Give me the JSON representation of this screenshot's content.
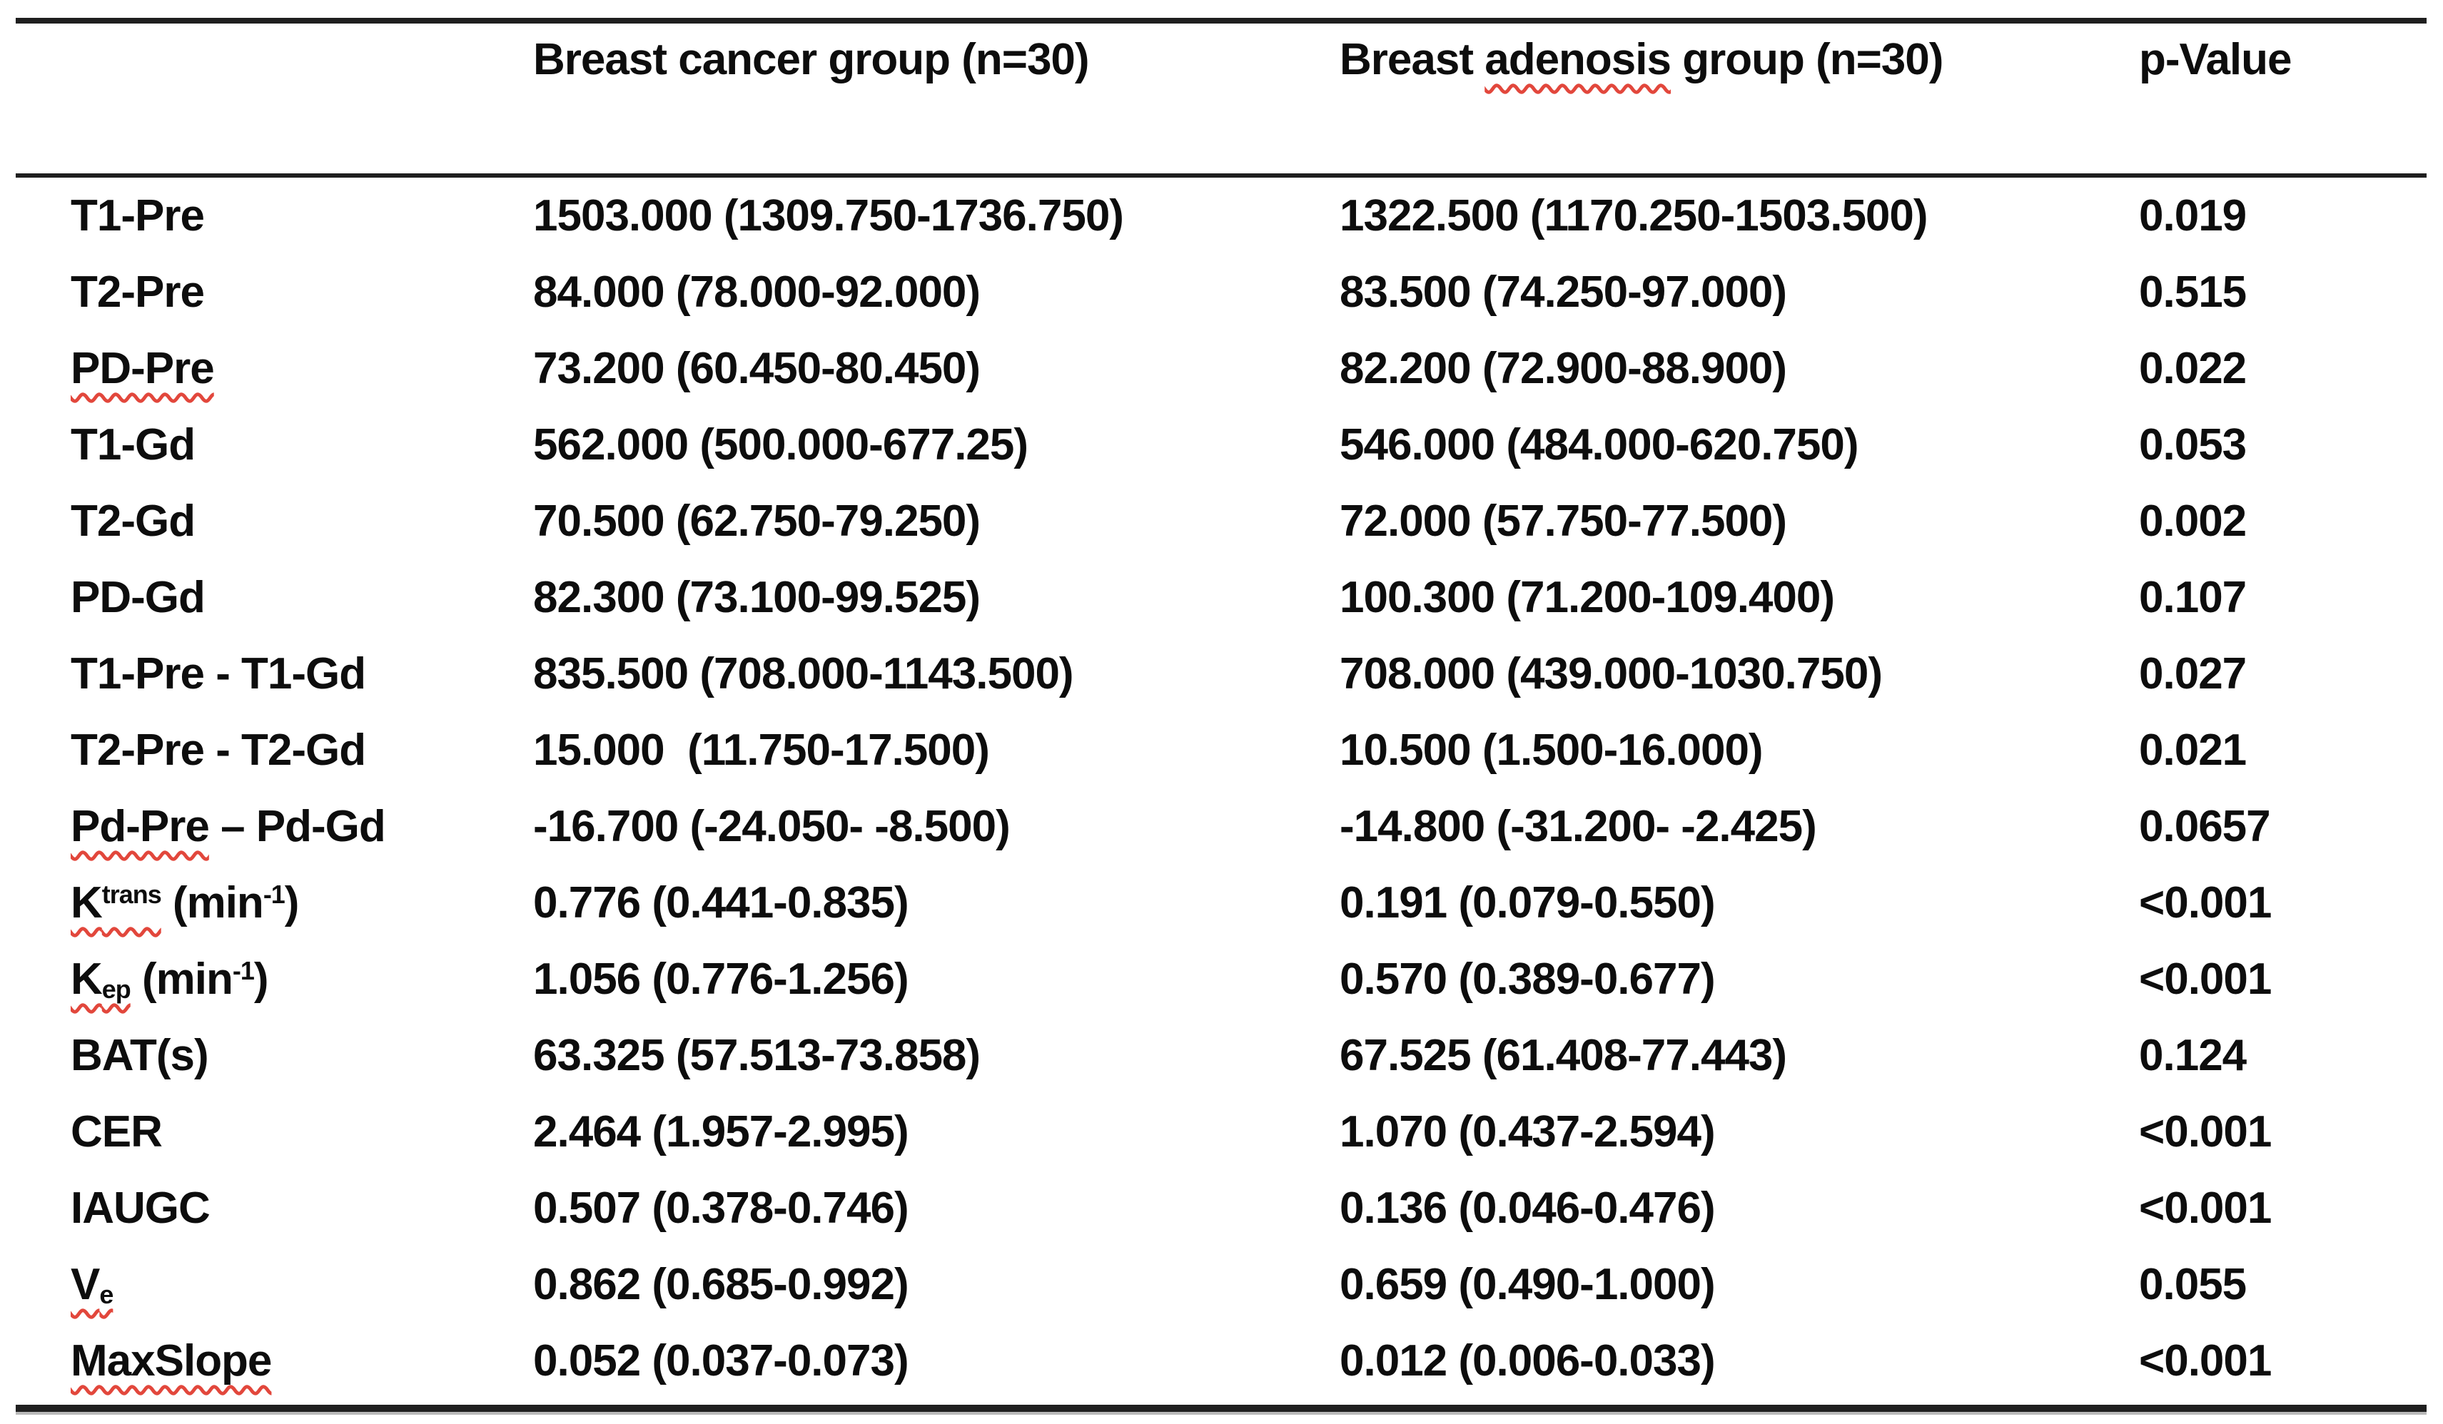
{
  "page": {
    "colors": {
      "background": "#ffffff",
      "text": "#0d0d0d",
      "table_rules": "#1f1f1f",
      "spellcheck_squiggle": "#e2473c"
    }
  },
  "table": {
    "header": {
      "parameter_column_label": "",
      "cancer_group_segments": [
        {
          "t": "Breast cancer group (n=30)"
        }
      ],
      "adenosis_group_segments": [
        {
          "t": "Breast "
        },
        {
          "t": "adenosis",
          "wavy": true
        },
        {
          "t": " group (n=30)"
        }
      ],
      "p_value": "p-Value"
    },
    "rows": [
      {
        "label_segments": [
          {
            "t": "T1-Pre"
          }
        ],
        "group1": "1503.000 (1309.750-1736.750)",
        "group2": "1322.500 (1170.250-1503.500)",
        "p": "0.019"
      },
      {
        "label_segments": [
          {
            "t": "T2-Pre"
          }
        ],
        "group1": "84.000 (78.000-92.000)",
        "group2": "83.500 (74.250-97.000)",
        "p": "0.515"
      },
      {
        "label_segments": [
          {
            "t": "PD-Pre",
            "wavy": true
          }
        ],
        "group1": "73.200 (60.450-80.450)",
        "group2": "82.200 (72.900-88.900)",
        "p": "0.022"
      },
      {
        "label_segments": [
          {
            "t": "T1-Gd"
          }
        ],
        "group1": "562.000 (500.000-677.25)",
        "group2": "546.000 (484.000-620.750)",
        "p": "0.053"
      },
      {
        "label_segments": [
          {
            "t": "T2-Gd"
          }
        ],
        "group1": "70.500 (62.750-79.250)",
        "group2": "72.000 (57.750-77.500)",
        "p": "0.002"
      },
      {
        "label_segments": [
          {
            "t": "PD-Gd"
          }
        ],
        "group1": "82.300 (73.100-99.525)",
        "group2": "100.300 (71.200-109.400)",
        "p": "0.107"
      },
      {
        "label_segments": [
          {
            "t": "T1-Pre - T1-Gd"
          }
        ],
        "group1": "835.500 (708.000-1143.500)",
        "group2": "708.000 (439.000-1030.750)",
        "p": "0.027"
      },
      {
        "label_segments": [
          {
            "t": "T2-Pre - T2-Gd"
          }
        ],
        "group1": "15.000  (11.750-17.500)",
        "group2": "10.500 (1.500-16.000)",
        "p": "0.021"
      },
      {
        "label_segments": [
          {
            "t": "Pd-Pre",
            "wavy": true
          },
          {
            "t": " – Pd-Gd"
          }
        ],
        "group1": "-16.700 (-24.050- -8.500)",
        "group2": "-14.800 (-31.200- -2.425)",
        "p": "0.0657"
      },
      {
        "label_segments": [
          {
            "t": "K",
            "wavy": true
          },
          {
            "t": "trans",
            "sup": true,
            "wavy": true
          },
          {
            "t": " (min"
          },
          {
            "t": "-1",
            "sup": true
          },
          {
            "t": ")"
          }
        ],
        "group1": "0.776 (0.441-0.835)",
        "group2": "0.191 (0.079-0.550)",
        "p": "<0.001"
      },
      {
        "label_segments": [
          {
            "t": "K",
            "wavy": true
          },
          {
            "t": "ep",
            "sub": true,
            "wavy": true
          },
          {
            "t": " (min"
          },
          {
            "t": "-1",
            "sup": true
          },
          {
            "t": ")"
          }
        ],
        "group1": "1.056 (0.776-1.256)",
        "group2": "0.570 (0.389-0.677)",
        "p": "<0.001"
      },
      {
        "label_segments": [
          {
            "t": "BAT(s)"
          }
        ],
        "group1": "63.325 (57.513-73.858)",
        "group2": "67.525 (61.408-77.443)",
        "p": "0.124"
      },
      {
        "label_segments": [
          {
            "t": "CER"
          }
        ],
        "group1": "2.464 (1.957-2.995)",
        "group2": "1.070 (0.437-2.594)",
        "p": "<0.001"
      },
      {
        "label_segments": [
          {
            "t": "IAUGC"
          }
        ],
        "group1": "0.507 (0.378-0.746)",
        "group2": "0.136 (0.046-0.476)",
        "p": "<0.001"
      },
      {
        "label_segments": [
          {
            "t": "V",
            "wavy": true
          },
          {
            "t": "e",
            "sub": true,
            "wavy": true
          }
        ],
        "group1": "0.862 (0.685-0.992)",
        "group2": "0.659 (0.490-1.000)",
        "p": "0.055"
      },
      {
        "label_segments": [
          {
            "t": "MaxSlope",
            "wavy": true
          }
        ],
        "group1": "0.052 (0.037-0.073)",
        "group2": "0.012 (0.006-0.033)",
        "p": "<0.001"
      }
    ]
  }
}
